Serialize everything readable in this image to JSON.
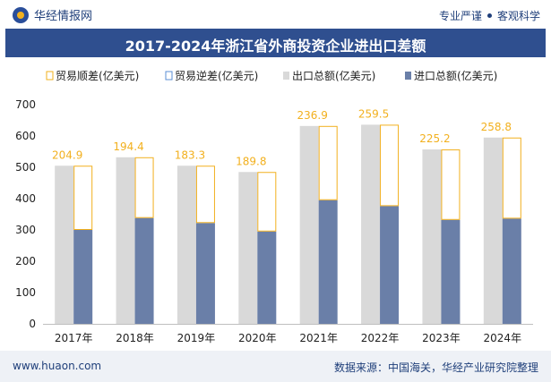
{
  "header": {
    "brand": "华经情报网",
    "tag1": "专业严谨",
    "tag2": "客观科学"
  },
  "footer": {
    "website": "www.huaon.com",
    "source": "数据来源：中国海关，华经产业研究院整理"
  },
  "chart_data": {
    "type": "bar",
    "title": "2017-2024年浙江省外商投资企业进出口差额",
    "categories": [
      "2017年",
      "2018年",
      "2019年",
      "2020年",
      "2021年",
      "2022年",
      "2023年",
      "2024年"
    ],
    "series": [
      {
        "name": "贸易顺差(亿美元)",
        "values": [
          204.9,
          194.4,
          183.3,
          189.8,
          236.9,
          259.5,
          225.2,
          258.8
        ]
      },
      {
        "name": "贸易逆差(亿美元)",
        "values": [
          0,
          0,
          0,
          0,
          0,
          0,
          0,
          0
        ]
      },
      {
        "name": "出口总额(亿美元)",
        "values": [
          505,
          532,
          505,
          485,
          632,
          636,
          557,
          595
        ]
      },
      {
        "name": "进口总额(亿美元)",
        "values": [
          300,
          338,
          322,
          295,
          395,
          376,
          332,
          336
        ]
      }
    ],
    "ylim": [
      0,
      700
    ],
    "yticks": [
      0,
      100,
      200,
      300,
      400,
      500,
      600,
      700
    ],
    "colors": {
      "surplus": "#f2b01e",
      "deficit": "#5b8fd6",
      "export": "#d9d9d9",
      "import": "#6a7fa8"
    },
    "legend_position": "top"
  }
}
